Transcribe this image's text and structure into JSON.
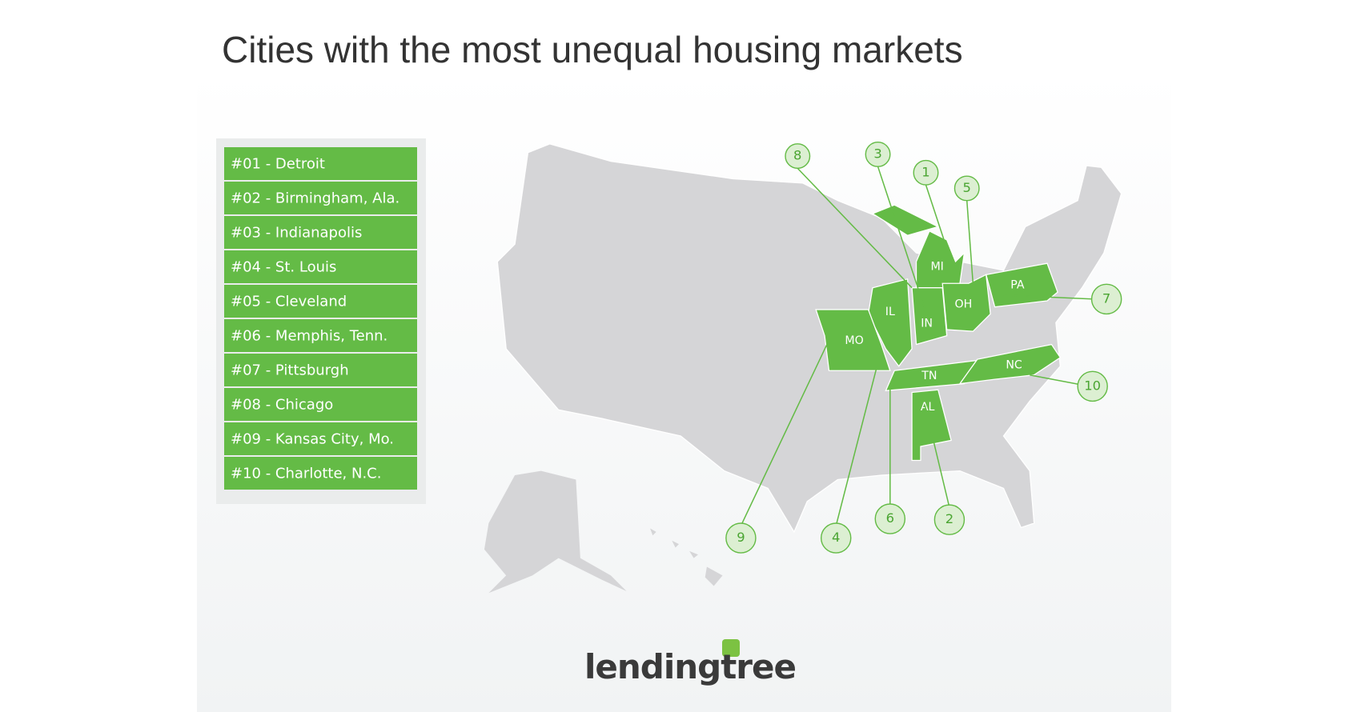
{
  "title": "Cities with the most unequal housing markets",
  "rankings": [
    "#01 - Detroit",
    "#02 - Birmingham, Ala.",
    "#03 - Indianapolis",
    "#04 - St. Louis",
    "#05 - Cleveland",
    "#06 - Memphis, Tenn.",
    "#07 - Pittsburgh",
    "#08 - Chicago",
    "#09 - Kansas City, Mo.",
    "#10 - Charlotte, N.C."
  ],
  "states": [
    "MI",
    "IL",
    "IN",
    "OH",
    "PA",
    "MO",
    "TN",
    "NC",
    "AL"
  ],
  "markers": [
    "1",
    "2",
    "3",
    "4",
    "5",
    "6",
    "7",
    "8",
    "9",
    "10"
  ],
  "logo": "lendingtree"
}
